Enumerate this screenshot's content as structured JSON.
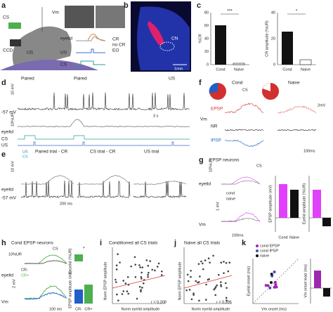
{
  "panels": {
    "a": {
      "label": "a",
      "cs": "CS",
      "ccd": "CCD",
      "us": "US",
      "vm": "Vm",
      "eyelid": "eyelid",
      "us_row": "US",
      "cs_row": "CS",
      "legend": [
        "CR",
        "no CR",
        "EO"
      ]
    },
    "b": {
      "label": "b",
      "region": "CN",
      "scale": "1mm"
    },
    "c": {
      "label": "c",
      "left_axis": "%CR",
      "left_ticks": [
        "0",
        "20",
        "40",
        "60",
        "80"
      ],
      "right_axis": "CR amplitude (%UR)",
      "right_ticks": [
        "0",
        "20",
        "40"
      ],
      "categories": [
        "Cond",
        "Naive"
      ],
      "sig_left": "***",
      "sig_right": "*"
    },
    "d": {
      "label": "d",
      "events": [
        "Paired",
        "Paired",
        "US"
      ],
      "vm_scale": "10 mV",
      "baseline": "-57 mV",
      "ur_scale": "10%UR",
      "time_scale": "3 s",
      "rows": [
        "eyelid",
        "CS",
        "US"
      ]
    },
    "e": {
      "label": "e",
      "titles": [
        "Paired trial - CR",
        "CS trial - CR",
        "US trial"
      ],
      "us": "US",
      "cs": "CS",
      "vm_scale": "10 mV",
      "baseline": "-57 mV",
      "eyelid": "eyelid",
      "time_scale": "200 ms"
    },
    "f": {
      "label": "f",
      "titles": [
        "Cond",
        "Naive"
      ],
      "cs": "CS",
      "epsp": "EPSP",
      "nr": "NR",
      "ipsp": "IPSP",
      "vm": "Vm",
      "v_scale": "2mV",
      "t_scale": "100ms"
    },
    "g": {
      "label": "g",
      "title": "EPSP neurons",
      "cs": "CS",
      "ur_scale": "10%UR",
      "eyelid": "eyelid",
      "legend": [
        "cond",
        "naive"
      ],
      "v_scale": "1 mV",
      "t_scale": "100ms",
      "vm": "Vm",
      "axis1": "EPSP amplitude (mV)",
      "axis2": "Eyelid amplitude (%UR)",
      "categories": [
        "Cond",
        "Naive"
      ]
    },
    "h": {
      "label": "h",
      "title": "Cond EPSP neurons",
      "cs": "CS",
      "ur_scale": "10%UR",
      "legend": [
        "CR-",
        "CR+"
      ],
      "eyelid": "eyelid",
      "v_scale": "2 mV",
      "vm": "Vm",
      "t_scale": "100 ms",
      "axis1": "Δ eyelid (%UR)",
      "axis2": "EPSP amplitude (mV)",
      "sig": "*",
      "categories": [
        "CR-",
        "CR+"
      ]
    },
    "i": {
      "label": "i",
      "title": "Conditioned all CS trials",
      "y_axis": "Norm EPSP amplitude",
      "x_axis": "Norm eyelid amplitude",
      "r": "r = 0.308"
    },
    "j": {
      "label": "j",
      "title": "Naive all CS trials",
      "y_axis": "Norm EPSP amplitude",
      "x_axis": "Norm eyelid amplitude",
      "r": "r = 0.395"
    },
    "k": {
      "label": "k",
      "legend": [
        "cond EPSP",
        "cond IPSP",
        "naive"
      ],
      "y_axis": "Eyelid onset (ms)",
      "x_axis": "Vm onset (ms)",
      "y_axis2": "Vm onset lead (ms)"
    }
  }
}
